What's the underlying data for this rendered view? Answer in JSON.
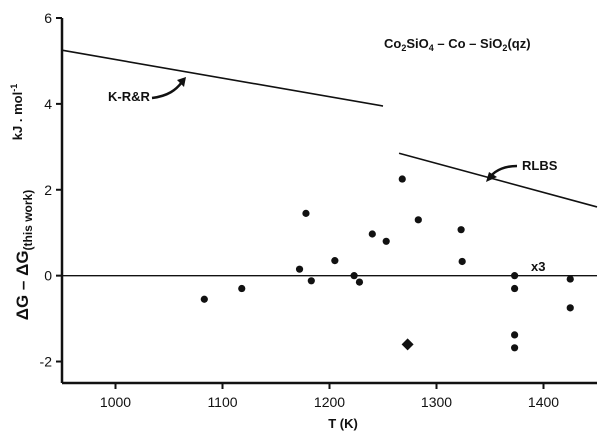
{
  "chart_data": {
    "type": "scatter",
    "xlabel": "T (K)",
    "ylabel_main": "ΔG – ΔG",
    "ylabel_sub": "(this work)",
    "yunit": "kJ . mol",
    "yunit_sup": "-1",
    "xlim": [
      950,
      1450
    ],
    "ylim": [
      -2.5,
      6
    ],
    "xticks": [
      1000,
      1100,
      1200,
      1300,
      1400
    ],
    "yticks": [
      -2,
      0,
      2,
      4,
      6
    ],
    "grid": false,
    "system": {
      "a": "Co",
      "a_sub": "2",
      "b": "SiO",
      "b_sub": "4",
      "c": " – Co – SiO",
      "c_sub": "2",
      "d": "(qz)"
    },
    "points": [
      {
        "x": 1083,
        "y": -0.55
      },
      {
        "x": 1118,
        "y": -0.3
      },
      {
        "x": 1172,
        "y": 0.15
      },
      {
        "x": 1178,
        "y": 1.45
      },
      {
        "x": 1183,
        "y": -0.12
      },
      {
        "x": 1205,
        "y": 0.35
      },
      {
        "x": 1223,
        "y": 0.0
      },
      {
        "x": 1228,
        "y": -0.15
      },
      {
        "x": 1240,
        "y": 0.97
      },
      {
        "x": 1253,
        "y": 0.8
      },
      {
        "x": 1268,
        "y": 2.25
      },
      {
        "x": 1283,
        "y": 1.3
      },
      {
        "x": 1323,
        "y": 1.07
      },
      {
        "x": 1324,
        "y": 0.33
      },
      {
        "x": 1373,
        "y": 0.0
      },
      {
        "x": 1373,
        "y": -0.3
      },
      {
        "x": 1373,
        "y": -1.38
      },
      {
        "x": 1373,
        "y": -1.68
      },
      {
        "x": 1425,
        "y": -0.08
      },
      {
        "x": 1425,
        "y": -0.75
      }
    ],
    "diamond": {
      "x": 1273,
      "y": -1.6
    },
    "zero_line": 0,
    "lines": [
      {
        "name": "K-R&R",
        "x": [
          950,
          1250
        ],
        "y": [
          5.25,
          3.95
        ]
      },
      {
        "name": "RLBS",
        "x": [
          1265,
          1450
        ],
        "y": [
          2.85,
          1.6
        ]
      }
    ],
    "annotation_x3": "x3"
  }
}
